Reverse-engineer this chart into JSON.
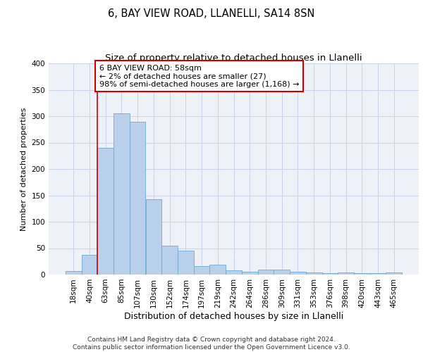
{
  "title1": "6, BAY VIEW ROAD, LLANELLI, SA14 8SN",
  "title2": "Size of property relative to detached houses in Llanelli",
  "xlabel": "Distribution of detached houses by size in Llanelli",
  "ylabel": "Number of detached properties",
  "categories": [
    "18sqm",
    "40sqm",
    "63sqm",
    "85sqm",
    "107sqm",
    "130sqm",
    "152sqm",
    "174sqm",
    "197sqm",
    "219sqm",
    "242sqm",
    "264sqm",
    "286sqm",
    "309sqm",
    "331sqm",
    "353sqm",
    "376sqm",
    "398sqm",
    "420sqm",
    "443sqm",
    "465sqm"
  ],
  "values": [
    7,
    38,
    240,
    305,
    290,
    143,
    55,
    46,
    16,
    19,
    8,
    5,
    10,
    10,
    5,
    4,
    3,
    4,
    3,
    3,
    4
  ],
  "bar_color": "#b8d0ea",
  "bar_edge_color": "#6aaad4",
  "grid_color": "#c8d4e8",
  "background_color": "#eef2f8",
  "annotation_line_color": "#cc0000",
  "annotation_box_text": "6 BAY VIEW ROAD: 58sqm\n← 2% of detached houses are smaller (27)\n98% of semi-detached houses are larger (1,168) →",
  "annotation_box_color": "#ffffff",
  "annotation_box_edge_color": "#cc0000",
  "ylim": [
    0,
    400
  ],
  "yticks": [
    0,
    50,
    100,
    150,
    200,
    250,
    300,
    350,
    400
  ],
  "footnote": "Contains HM Land Registry data © Crown copyright and database right 2024.\nContains public sector information licensed under the Open Government Licence v3.0.",
  "title1_fontsize": 10.5,
  "title2_fontsize": 9.5,
  "xlabel_fontsize": 9,
  "ylabel_fontsize": 8,
  "tick_fontsize": 7.5,
  "annotation_fontsize": 8,
  "footnote_fontsize": 6.5
}
